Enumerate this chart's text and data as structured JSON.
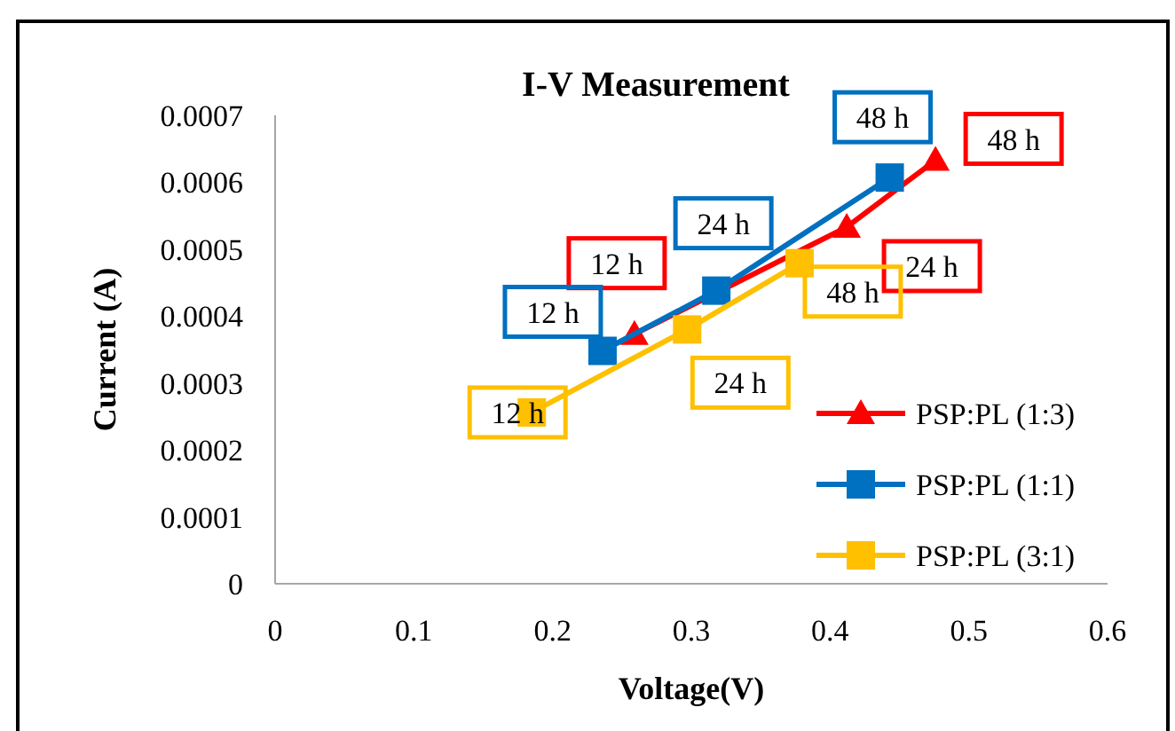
{
  "chart_data": {
    "type": "line",
    "title": "I-V Measurement",
    "xlabel": "Voltage(V)",
    "ylabel": "Current (A)",
    "xlim": [
      0,
      0.6
    ],
    "xticks": [
      0,
      0.1,
      0.2,
      0.3,
      0.4,
      0.5,
      0.6
    ],
    "ylim": [
      0,
      0.0007
    ],
    "yticks": [
      0,
      0.0001,
      0.0002,
      0.0003,
      0.0004,
      0.0005,
      0.0006,
      0.0007
    ],
    "grid": false,
    "legend": "right",
    "series": [
      {
        "name": "PSP:PL (1:3)",
        "color": "#ff0000",
        "marker": "triangle",
        "x": [
          0.259,
          0.412,
          0.476
        ],
        "values": [
          0.000373,
          0.000533,
          0.000633
        ]
      },
      {
        "name": "PSP:PL (1:1)",
        "color": "#0070c0",
        "marker": "square",
        "x": [
          0.236,
          0.318,
          0.443
        ],
        "values": [
          0.000348,
          0.000438,
          0.000607
        ]
      },
      {
        "name": "PSP:PL (3:1)",
        "color": "#ffc000",
        "marker": "square",
        "x": [
          0.185,
          0.297,
          0.378
        ],
        "values": [
          0.000256,
          0.00038,
          0.000479
        ]
      }
    ],
    "annotations": [
      {
        "text": "12 h",
        "x": 0.259,
        "y": 0.000373
      },
      {
        "text": "24 h",
        "x": 0.412,
        "y": 0.000533
      },
      {
        "text": "48 h",
        "x": 0.476,
        "y": 0.000633
      },
      {
        "text": "12 h",
        "x": 0.236,
        "y": 0.000348
      },
      {
        "text": "24 h",
        "x": 0.318,
        "y": 0.000438
      },
      {
        "text": "48 h",
        "x": 0.443,
        "y": 0.000607
      },
      {
        "text": "12 h",
        "x": 0.185,
        "y": 0.000256
      },
      {
        "text": "24 h",
        "x": 0.297,
        "y": 0.00038
      },
      {
        "text": "48 h",
        "x": 0.378,
        "y": 0.000479
      }
    ]
  }
}
